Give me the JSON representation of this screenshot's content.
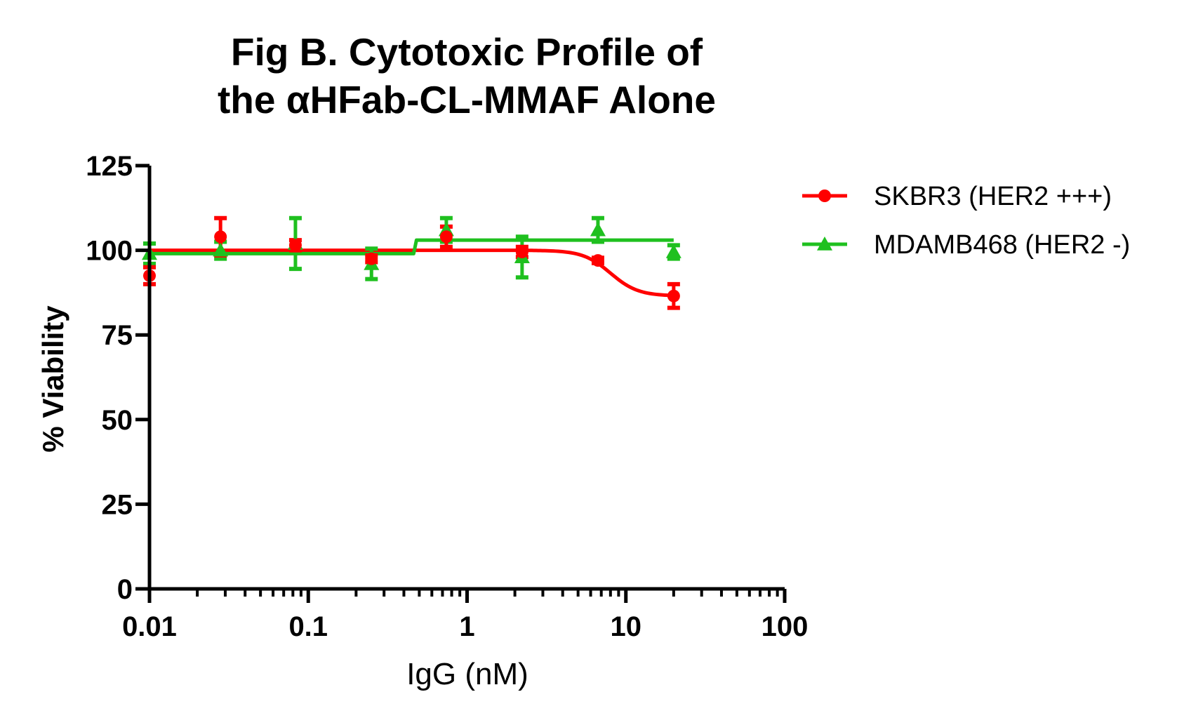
{
  "chart_data": {
    "type": "scatter",
    "title_lines": [
      "Fig B. Cytotoxic Profile of",
      "the αHFab-CL-MMAF Alone"
    ],
    "xlabel": "IgG (nM)",
    "ylabel": "% Viability",
    "x_scale": "log",
    "xlim": [
      0.01,
      100
    ],
    "ylim": [
      0,
      125
    ],
    "x_tick_values": [
      0.01,
      0.1,
      1,
      10,
      100
    ],
    "x_tick_labels": [
      "0.01",
      "0.1",
      "1",
      "10",
      "100"
    ],
    "y_tick_values": [
      0,
      25,
      50,
      75,
      100,
      125
    ],
    "y_tick_labels": [
      "0",
      "25",
      "50",
      "75",
      "100",
      "125"
    ],
    "grid": false,
    "legend_position": "right",
    "series": [
      {
        "name": "SKBR3 (HER2 +++)",
        "color": "#ff0000",
        "marker": "circle",
        "x": [
          0.01,
          0.028,
          0.083,
          0.25,
          0.74,
          2.22,
          6.67,
          20
        ],
        "y": [
          92.5,
          104,
          101.5,
          97.5,
          104,
          99.5,
          97,
          86.5
        ],
        "err": [
          2.5,
          5.5,
          1.5,
          1,
          3,
          1.5,
          0.8,
          3.5
        ],
        "fit": {
          "type": "sigmoid",
          "top": 100,
          "bottom": 86.5,
          "ec50": 8,
          "hill": 5
        }
      },
      {
        "name": "MDAMB468 (HER2 -)",
        "color": "#1fc01f",
        "marker": "triangle",
        "x": [
          0.01,
          0.028,
          0.083,
          0.25,
          0.74,
          2.22,
          6.67,
          20
        ],
        "y": [
          99,
          100,
          102,
          96,
          106,
          98,
          106,
          99.5
        ],
        "err": [
          3,
          2.5,
          7.5,
          4.5,
          3.5,
          6,
          3.5,
          2
        ],
        "fit": {
          "type": "step",
          "bottom": 99,
          "top": 103,
          "x_step": 0.48
        }
      }
    ]
  }
}
